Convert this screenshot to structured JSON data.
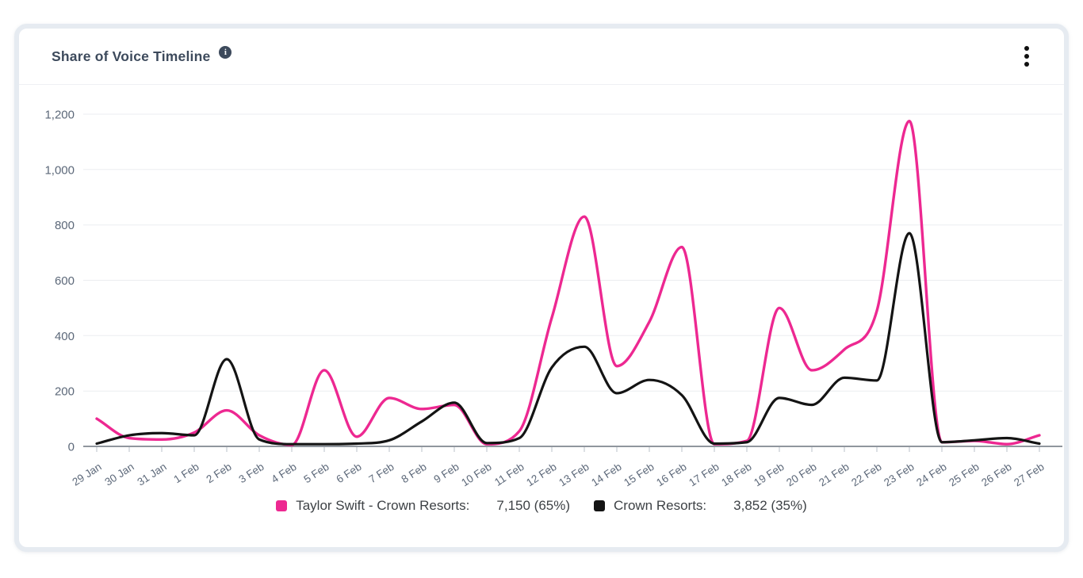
{
  "icons": {
    "info": "i",
    "menu": "kebab-vertical-dots"
  },
  "card": {
    "header": {
      "title": "Share of Voice Timeline"
    },
    "legend": {
      "items": [
        {
          "label": "Taylor Swift - Crown Resorts:",
          "value": "7,150 (65%)",
          "color": "#ed2891"
        },
        {
          "label": "Crown Resorts:",
          "value": "3,852 (35%)",
          "color": "#141414"
        }
      ]
    }
  },
  "chart_data": {
    "type": "line",
    "title": "Share of Voice Timeline",
    "line_style": "smooth-spline",
    "grid": "horizontal",
    "legend_position": "bottom",
    "ylim": [
      0,
      1200
    ],
    "yticks": [
      0,
      200,
      400,
      600,
      800,
      1000,
      1200
    ],
    "x_labels": [
      "29 Jan",
      "30 Jan",
      "31 Jan",
      "1 Feb",
      "2 Feb",
      "3 Feb",
      "4 Feb",
      "5 Feb",
      "6 Feb",
      "7 Feb",
      "8 Feb",
      "9 Feb",
      "10 Feb",
      "11 Feb",
      "12 Feb",
      "13 Feb",
      "14 Feb",
      "15 Feb",
      "16 Feb",
      "17 Feb",
      "18 Feb",
      "19 Feb",
      "20 Feb",
      "21 Feb",
      "22 Feb",
      "23 Feb",
      "24 Feb",
      "25 Feb",
      "26 Feb",
      "27 Feb"
    ],
    "series": [
      {
        "name": "Taylor Swift - Crown Resorts",
        "color": "#ed2891",
        "total": 7150,
        "share_pct": 65,
        "values": [
          100,
          30,
          25,
          50,
          130,
          40,
          5,
          275,
          35,
          175,
          135,
          150,
          8,
          55,
          465,
          830,
          290,
          450,
          720,
          8,
          20,
          500,
          275,
          350,
          490,
          1175,
          15,
          20,
          8,
          40
        ]
      },
      {
        "name": "Crown Resorts",
        "color": "#141414",
        "total": 3852,
        "share_pct": 35,
        "values": [
          10,
          40,
          48,
          40,
          315,
          25,
          8,
          8,
          10,
          22,
          90,
          158,
          12,
          30,
          285,
          360,
          192,
          240,
          185,
          10,
          15,
          175,
          150,
          248,
          238,
          770,
          15,
          22,
          30,
          10
        ]
      }
    ],
    "style": {
      "grid_color": "#ebedf0",
      "axis_color": "#90969e",
      "tick_color": "#c4cad1",
      "label_color": "#5c6879"
    }
  }
}
